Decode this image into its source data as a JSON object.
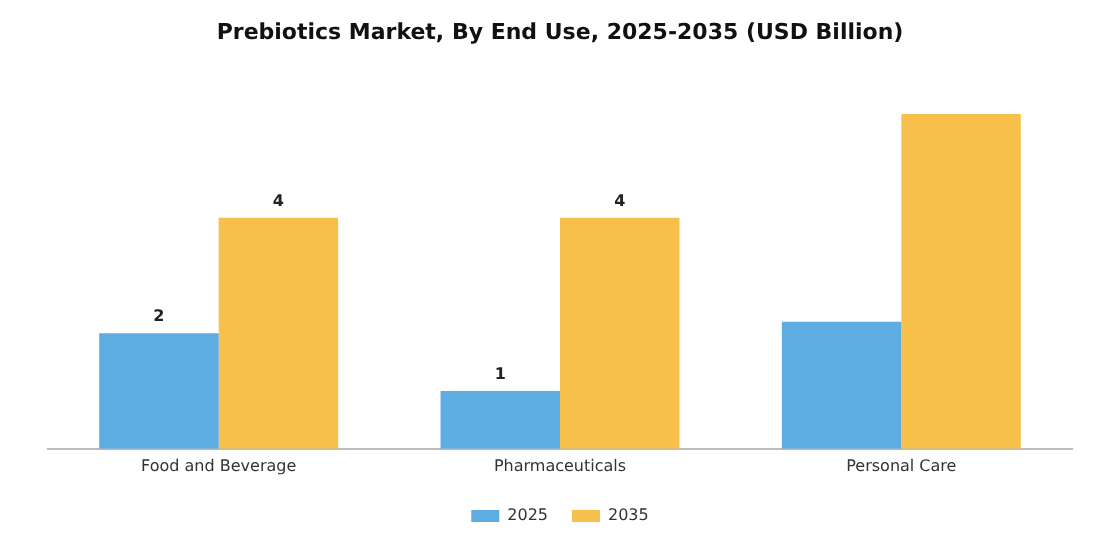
{
  "chart_data": {
    "type": "bar",
    "title": "Prebiotics Market, By End Use, 2025-2035 (USD Billion)",
    "categories": [
      "Food and Beverage",
      "Pharmaceuticals",
      "Personal Care"
    ],
    "legend": "bottom",
    "grid": false,
    "series": [
      {
        "name": "2025",
        "color": "#5dade2",
        "values": [
          2,
          1,
          2.2
        ],
        "value_labels": [
          "2",
          "1",
          null
        ]
      },
      {
        "name": "2035",
        "color": "#f7c04a",
        "values": [
          4,
          4,
          5.8
        ],
        "value_labels": [
          "4",
          "4",
          null
        ]
      }
    ]
  }
}
